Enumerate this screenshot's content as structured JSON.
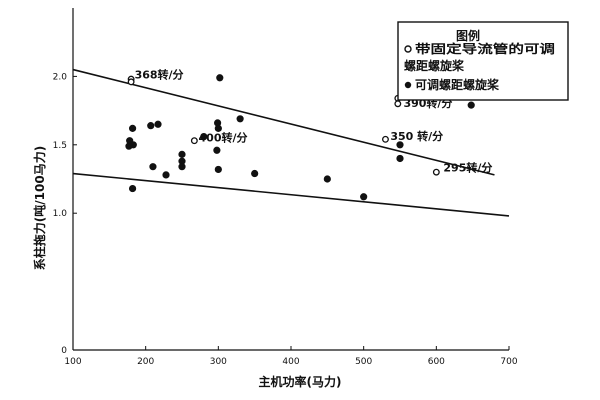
{
  "chart_data": {
    "type": "scatter",
    "title": "",
    "xlabel": "主机功率(马力)",
    "ylabel": "系柱拖力(吨/100马力)",
    "xlim": [
      100,
      700
    ],
    "ylim": [
      0,
      2.5
    ],
    "xticks": [
      100,
      200,
      300,
      400,
      500,
      600,
      700
    ],
    "xtick_labels": [
      "100",
      "200",
      "300",
      "400",
      "500",
      "600",
      "700"
    ],
    "yticks": [
      0,
      1.0,
      1.5,
      2.0
    ],
    "ytick_labels": [
      "0",
      "1.0",
      "1.5",
      "2.0"
    ],
    "grid": false,
    "legend_position": "top-right",
    "legend_title": "图例",
    "series": [
      {
        "name": "带固定导流管的可调螺距螺旋桨",
        "marker": "open-circle",
        "points": [
          {
            "x": 180,
            "y": 1.98
          },
          {
            "x": 180,
            "y": 1.96
          },
          {
            "x": 267,
            "y": 1.53
          },
          {
            "x": 530,
            "y": 1.54
          },
          {
            "x": 547,
            "y": 1.84
          },
          {
            "x": 547,
            "y": 1.8
          },
          {
            "x": 600,
            "y": 1.3
          }
        ]
      },
      {
        "name": "可调螺距螺旋桨",
        "marker": "filled-circle",
        "points": [
          {
            "x": 302,
            "y": 1.99
          },
          {
            "x": 182,
            "y": 1.62
          },
          {
            "x": 178,
            "y": 1.53
          },
          {
            "x": 183,
            "y": 1.5
          },
          {
            "x": 177,
            "y": 1.49
          },
          {
            "x": 207,
            "y": 1.64
          },
          {
            "x": 217,
            "y": 1.65
          },
          {
            "x": 299,
            "y": 1.66
          },
          {
            "x": 300,
            "y": 1.62
          },
          {
            "x": 330,
            "y": 1.69
          },
          {
            "x": 280,
            "y": 1.56
          },
          {
            "x": 298,
            "y": 1.46
          },
          {
            "x": 250,
            "y": 1.43
          },
          {
            "x": 250,
            "y": 1.38
          },
          {
            "x": 250,
            "y": 1.34
          },
          {
            "x": 210,
            "y": 1.34
          },
          {
            "x": 300,
            "y": 1.32
          },
          {
            "x": 228,
            "y": 1.28
          },
          {
            "x": 350,
            "y": 1.29
          },
          {
            "x": 182,
            "y": 1.18
          },
          {
            "x": 450,
            "y": 1.25
          },
          {
            "x": 500,
            "y": 1.12
          },
          {
            "x": 550,
            "y": 1.4
          },
          {
            "x": 550,
            "y": 1.5
          },
          {
            "x": 648,
            "y": 1.79
          }
        ]
      }
    ],
    "trend_lines": [
      {
        "from": [
          100,
          2.05
        ],
        "to": [
          680,
          1.28
        ]
      },
      {
        "from": [
          100,
          1.29
        ],
        "to": [
          700,
          0.98
        ]
      }
    ],
    "annotations": [
      {
        "text": "368转/分",
        "x": 182,
        "y": 2.0
      },
      {
        "text": "390转/分",
        "x": 552,
        "y": 1.86
      },
      {
        "text": "390转/分",
        "x": 552,
        "y": 1.79
      },
      {
        "text": "400转/分",
        "x": 270,
        "y": 1.54
      },
      {
        "text": "350 转/分",
        "x": 534,
        "y": 1.55
      },
      {
        "text": "295转/分",
        "x": 607,
        "y": 1.32
      }
    ]
  }
}
